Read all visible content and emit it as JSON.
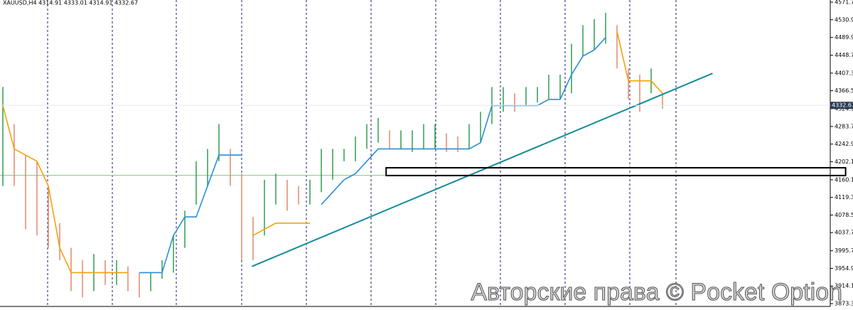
{
  "chart_data": {
    "type": "ohlc",
    "title": "XAUUSD,H4  4314.91 4333.01 4314.91 4332.67",
    "watermark": "Авторские права © Pocket Option",
    "ylim": [
      3873.3,
      4571.7
    ],
    "yticks": [
      {
        "value": 4571.7,
        "label": "4571.70"
      },
      {
        "value": 4530.9,
        "label": "4530.90"
      },
      {
        "value": 4489.9,
        "label": "4489.90"
      },
      {
        "value": 4448.7,
        "label": "4448.70"
      },
      {
        "value": 4407.3,
        "label": "4407.30"
      },
      {
        "value": 4366.5,
        "label": "4366.50"
      },
      {
        "value": 4324.9,
        "label": "4324.90"
      },
      {
        "value": 4283.7,
        "label": "4283.70"
      },
      {
        "value": 4242.9,
        "label": "4242.90"
      },
      {
        "value": 4202.1,
        "label": "4202.10"
      },
      {
        "value": 4160.1,
        "label": "4160.10"
      },
      {
        "value": 4119.3,
        "label": "4119.30"
      },
      {
        "value": 4078.5,
        "label": "4078.50"
      },
      {
        "value": 4037.7,
        "label": "4037.70"
      },
      {
        "value": 3995.7,
        "label": "3995.70"
      },
      {
        "value": 3954.9,
        "label": "3954.90"
      },
      {
        "value": 3914.1,
        "label": "3914.10"
      },
      {
        "value": 3873.3,
        "label": "3873.30"
      }
    ],
    "up_color": "#2f9e4f",
    "down_color": "#e0896a",
    "high": [
      4375.0,
      4289.1,
      4217.4,
      4203.1,
      4145.8,
      4059.8,
      4002.5,
      3973.8,
      3988.1,
      3973.8,
      3973.8,
      3959.5,
      3945.1,
      3945.1,
      3973.8,
      4031.1,
      4088.4,
      4203.1,
      4231.7,
      4289.1,
      4231.7,
      4174.4,
      4074.1,
      4160.1,
      4174.4,
      4160.1,
      4145.8,
      4160.1,
      4231.7,
      4231.7,
      4231.7,
      4260.4,
      4289.1,
      4303.4,
      4274.7,
      4274.7,
      4274.7,
      4289.1,
      4289.1,
      4267.6,
      4260.4,
      4289.1,
      4317.7,
      4375.0,
      4375.0,
      4360.7,
      4375.0,
      4375.0,
      4403.7,
      4403.7,
      4475.4,
      4518.3,
      4532.7,
      4547.0,
      4518.3,
      4418.0,
      4403.7,
      4418.0,
      4360.7
    ],
    "low": [
      4145.8,
      4145.8,
      4045.5,
      4031.1,
      4002.5,
      3973.8,
      3902.1,
      3887.8,
      3902.1,
      3916.5,
      3916.5,
      3902.1,
      3887.8,
      3902.1,
      3930.8,
      3945.1,
      4002.5,
      4102.8,
      4145.8,
      4203.1,
      4145.8,
      3973.8,
      3973.8,
      4031.1,
      4102.8,
      4088.4,
      4102.8,
      4102.8,
      4131.4,
      4160.1,
      4203.1,
      4203.1,
      4231.7,
      4246.1,
      4231.7,
      4231.7,
      4224.6,
      4231.7,
      4231.7,
      4224.6,
      4224.6,
      4231.7,
      4246.1,
      4289.1,
      4317.7,
      4317.7,
      4332.1,
      4339.2,
      4346.4,
      4346.4,
      4360.7,
      4446.7,
      4461.0,
      4475.4,
      4418.0,
      4346.4,
      4317.7,
      4360.7,
      4324.9
    ],
    "series": [
      {
        "color": "#f0a30a",
        "values": [
          4332.1,
          4231.7,
          4217.4,
          4203.1,
          4145.8,
          4002.5,
          3945.1,
          3945.1,
          3945.1,
          3945.1,
          3945.1,
          3945.1,
          null,
          null,
          null,
          null,
          null,
          null,
          null,
          null,
          null,
          null,
          4031.1,
          4045.5,
          4059.8,
          4059.8,
          4059.8,
          4059.8,
          null,
          null,
          null,
          null,
          null,
          null,
          null,
          null,
          null,
          null,
          null,
          null,
          null,
          null,
          null,
          null,
          null,
          null,
          null,
          null,
          null,
          null,
          null,
          null,
          null,
          null,
          4504.0,
          4389.4,
          4389.4,
          4389.4,
          4360.7
        ]
      },
      {
        "color": "#2a8fd8",
        "values": [
          null,
          null,
          null,
          null,
          null,
          null,
          null,
          null,
          null,
          null,
          null,
          null,
          3945.1,
          3945.1,
          3945.1,
          4031.1,
          4074.1,
          4074.1,
          4145.8,
          4217.4,
          4217.4,
          4217.4,
          null,
          null,
          null,
          null,
          null,
          null,
          4102.8,
          4131.4,
          4160.1,
          4174.4,
          4203.1,
          4231.7,
          4231.7,
          4231.7,
          4231.7,
          4231.7,
          4231.7,
          4231.7,
          4231.7,
          4231.7,
          4246.1,
          4332.1,
          4332.1,
          4332.1,
          4332.1,
          4332.1,
          4346.4,
          4346.4,
          4403.7,
          4446.7,
          4461.0,
          4489.7,
          null,
          null,
          null,
          null,
          null
        ]
      }
    ],
    "trendline": {
      "color": "#138a9a",
      "x": [
        21.9,
        62.4
      ],
      "values": [
        3959.5,
        4406.6
      ]
    },
    "level": {
      "color": "#7fc97f",
      "value": 4170.4
    },
    "box": {
      "x": [
        33.7,
        74.1
      ],
      "values": [
        4188.0,
        4170.0
      ]
    },
    "price": {
      "value": 4332.67,
      "label": "4332.67"
    }
  }
}
